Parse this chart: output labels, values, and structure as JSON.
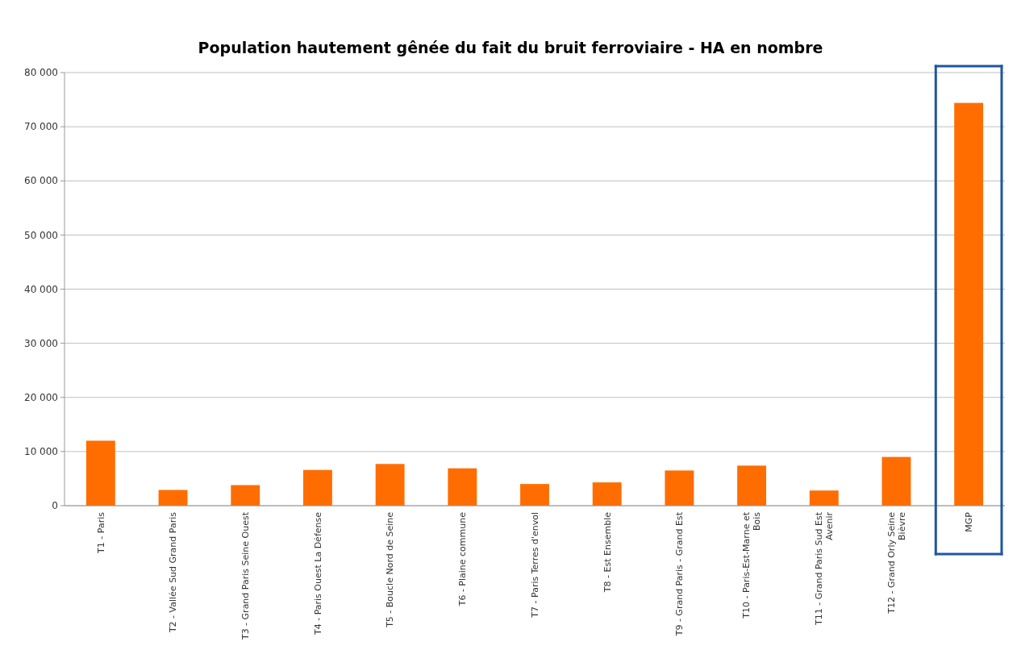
{
  "chart_data": {
    "type": "bar",
    "title": "Population hautement gênée du fait du bruit ferroviaire - HA en nombre",
    "categories": [
      "T1 - Paris",
      "T2 - Vallée Sud Grand Paris",
      "T3 - Grand Paris Seine Ouest",
      "T4 - Paris Ouest La Défense",
      "T5 - Boucle Nord de Seine",
      "T6 - Plaine commune",
      "T7 - Paris Terres d'envol",
      "T8 - Est Ensemble",
      "T9 - Grand Paris - Grand Est",
      "T10 - Paris-Est-Marne et Bois",
      "T11 - Grand Paris Sud Est Avenir",
      "T12 - Grand Orly Seine Bièvre",
      "MGP"
    ],
    "values": [
      12000,
      2900,
      3800,
      6600,
      7700,
      6900,
      4000,
      4300,
      6500,
      7400,
      2800,
      9000,
      74400
    ],
    "color": "#ff6d00",
    "ylim": [
      0,
      80000
    ],
    "yticks": [
      {
        "value": 0,
        "label": "0"
      },
      {
        "value": 10000,
        "label": "10 000"
      },
      {
        "value": 20000,
        "label": "20 000"
      },
      {
        "value": 30000,
        "label": "30 000"
      },
      {
        "value": 40000,
        "label": "40 000"
      },
      {
        "value": 50000,
        "label": "50 000"
      },
      {
        "value": 60000,
        "label": "60 000"
      },
      {
        "value": 70000,
        "label": "70 000"
      },
      {
        "value": 80000,
        "label": "80 000"
      }
    ],
    "grid": "y"
  }
}
